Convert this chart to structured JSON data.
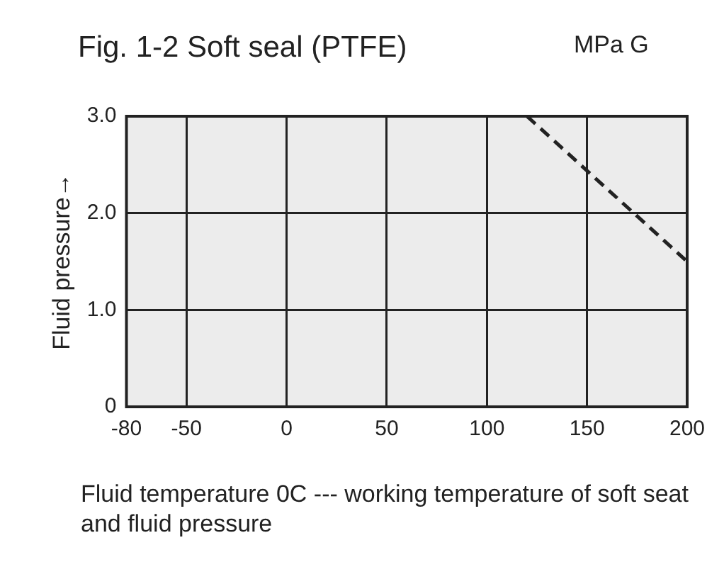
{
  "chart_data": {
    "type": "line",
    "title": "Fig. 1-2 Soft seal (PTFE)",
    "ylabel": "Fluid pressure→",
    "annotations": [
      "MPa G",
      "Fluid temperature 0C --- working temperature of soft seat and fluid pressure"
    ],
    "x": [
      120,
      200
    ],
    "series": [
      {
        "color": "#222222",
        "values": [
          3.0,
          1.5
        ],
        "line_style": "dashed"
      }
    ],
    "xlim": [
      -80,
      200
    ],
    "xticks": [
      -80,
      -50,
      0,
      50,
      100,
      150,
      200
    ],
    "ylim": [
      0,
      3.0
    ],
    "yticks": [
      {
        "value": 0,
        "label": "0"
      },
      {
        "value": 1,
        "label": "1.0"
      },
      {
        "value": 2,
        "label": "2.0"
      },
      {
        "value": 3,
        "label": "3.0"
      }
    ],
    "grid": true,
    "legend": false,
    "marker": "none"
  }
}
